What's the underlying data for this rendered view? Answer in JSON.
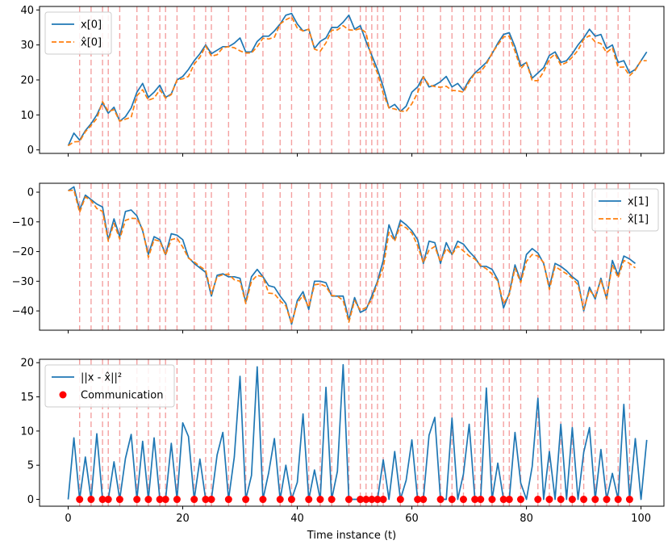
{
  "chart_data": [
    {
      "type": "line",
      "title": "",
      "xlabel": "",
      "ylabel": "",
      "xlim": [
        -5,
        104
      ],
      "ylim": [
        -1,
        41
      ],
      "yticks": [
        0,
        10,
        20,
        30,
        40
      ],
      "xticks": [
        0,
        20,
        40,
        60,
        80,
        100
      ],
      "show_xtick_labels": false,
      "legend_position": "upper-left",
      "series": [
        {
          "name": "x[0]",
          "color": "#1f77b4",
          "style": "solid",
          "values": [
            1.2,
            4.8,
            2.8,
            5.5,
            7.5,
            10,
            13.5,
            10.5,
            12.2,
            8.2,
            9.5,
            12,
            16.5,
            19,
            15,
            16.5,
            18.5,
            15,
            16,
            20,
            21,
            23,
            25.5,
            27.5,
            30,
            27.5,
            28.5,
            29.5,
            29.5,
            30.5,
            32,
            28,
            28,
            31,
            32.5,
            32.5,
            34,
            36,
            38.5,
            39,
            36,
            34,
            34.5,
            29,
            31,
            32,
            35,
            35,
            36.5,
            38.5,
            34.5,
            35.5,
            31,
            27,
            23,
            18,
            12,
            13,
            11,
            12.5,
            16.5,
            18,
            21,
            18,
            18.5,
            19.5,
            21,
            18,
            19,
            17,
            20,
            22,
            23.5,
            25,
            27.5,
            30.5,
            33,
            33.5,
            29.5,
            24,
            25,
            20.5,
            22,
            23.5,
            27,
            28,
            25,
            25.5,
            27.5,
            30,
            32,
            34.5,
            32.5,
            33,
            29,
            30,
            25,
            25.5,
            22,
            23,
            25.5,
            28
          ]
        },
        {
          "name": "x̂[0]",
          "color": "#ff7f0e",
          "style": "dashed",
          "values": [
            1.2,
            2.3,
            2.4,
            5.2,
            7.0,
            9.0,
            13.8,
            11.0,
            11.5,
            8.2,
            8.8,
            9.3,
            15.5,
            17.2,
            14.2,
            14.8,
            17.2,
            14.8,
            15.8,
            20.0,
            20.3,
            21.0,
            24.5,
            26.5,
            29.7,
            26.8,
            27.2,
            29.2,
            29.5,
            29.2,
            28.3,
            27.7,
            27.7,
            29.5,
            31.9,
            31.7,
            32.2,
            36.0,
            37.2,
            38.0,
            34.8,
            34.0,
            34.5,
            28.8,
            28.2,
            30.6,
            34.2,
            34.3,
            35.5,
            34.3,
            34.2,
            34.7,
            33.5,
            25.8,
            21.9,
            16.1,
            12.0,
            11.7,
            11.1,
            11.0,
            13.2,
            16.3,
            20.9,
            18.5,
            18.1,
            17.9,
            18.2,
            17.0,
            16.9,
            16.5,
            19.4,
            21.9,
            22.3,
            24.5,
            27.7,
            30.0,
            32.3,
            32.5,
            28.2,
            23.2,
            25.0,
            19.8,
            19.8,
            22.3,
            26.0,
            27.4,
            24.2,
            25.0,
            26.5,
            28.5,
            31.6,
            32.7,
            30.9,
            30.4,
            27.8,
            29.2,
            23.6,
            23.7,
            21.2,
            22.8,
            25.5,
            25.5
          ]
        }
      ]
    },
    {
      "type": "line",
      "title": "",
      "xlabel": "",
      "ylabel": "",
      "xlim": [
        -5,
        104
      ],
      "ylim": [
        -46.5,
        3
      ],
      "yticks": [
        0,
        -10,
        -20,
        -30,
        -40
      ],
      "xticks": [
        0,
        20,
        40,
        60,
        80,
        100
      ],
      "show_xtick_labels": false,
      "legend_position": "upper-right",
      "series": [
        {
          "name": "x[1]",
          "color": "#1f77b4",
          "style": "solid",
          "values": [
            0.5,
            1.8,
            -6,
            -1,
            -2.5,
            -4,
            -5,
            -16,
            -9,
            -15,
            -6.5,
            -6,
            -8,
            -13,
            -21,
            -15,
            -16,
            -21,
            -14,
            -14.5,
            -16,
            -22,
            -24,
            -25.5,
            -27,
            -35,
            -28,
            -27.5,
            -28.5,
            -28.5,
            -29,
            -37,
            -28.5,
            -26,
            -28.5,
            -31.5,
            -32,
            -35,
            -37.5,
            -44.5,
            -36.5,
            -33.5,
            -39.5,
            -30,
            -30,
            -30.5,
            -35,
            -35,
            -35,
            -43,
            -35.5,
            -40.5,
            -39.5,
            -35,
            -30,
            -23,
            -11,
            -16,
            -9.5,
            -11,
            -13,
            -16,
            -24,
            -16.5,
            -17,
            -24,
            -17,
            -21,
            -16.5,
            -17.5,
            -20,
            -22,
            -25,
            -25,
            -26,
            -29.5,
            -39,
            -34,
            -24.5,
            -30,
            -21,
            -19,
            -20.5,
            -24,
            -32,
            -24,
            -25,
            -26.5,
            -28.5,
            -30,
            -40,
            -32,
            -36,
            -29,
            -36,
            -23,
            -28,
            -21.5,
            -22.5,
            -24
          ]
        },
        {
          "name": "x̂[1]",
          "color": "#ff7f0e",
          "style": "dashed",
          "values": [
            0.5,
            0.7,
            -6.8,
            -1.6,
            -2.8,
            -5.5,
            -6.5,
            -16.5,
            -10.5,
            -15.8,
            -9.5,
            -8.8,
            -8.9,
            -12.5,
            -22.0,
            -16.0,
            -16.5,
            -21.2,
            -16.0,
            -15.5,
            -18.5,
            -22.2,
            -23.5,
            -25.0,
            -26.3,
            -34.3,
            -28.5,
            -27.8,
            -27.6,
            -29.5,
            -30.0,
            -37.5,
            -30.0,
            -28.0,
            -28.5,
            -34.0,
            -34.2,
            -36.6,
            -38.3,
            -44.3,
            -37.3,
            -34.8,
            -38.8,
            -31.2,
            -30.9,
            -31.8,
            -34.8,
            -35.0,
            -36.5,
            -43.8,
            -36.5,
            -39.8,
            -38.9,
            -36.3,
            -30.5,
            -25.5,
            -13.5,
            -16.5,
            -11.0,
            -12.0,
            -13.8,
            -18.0,
            -23.8,
            -19.5,
            -18.3,
            -23.5,
            -19.0,
            -21.0,
            -18.2,
            -19.8,
            -21.5,
            -22.5,
            -24.7,
            -25.8,
            -27.6,
            -29.9,
            -37.5,
            -34.6,
            -25.6,
            -30.5,
            -23.3,
            -21.0,
            -21.5,
            -23.7,
            -32.8,
            -25.0,
            -26.3,
            -27.5,
            -29.0,
            -31.2,
            -39.5,
            -33.0,
            -35.3,
            -29.6,
            -35.8,
            -24.5,
            -28.8,
            -23.0,
            -24.0,
            -25.5
          ]
        }
      ]
    },
    {
      "type": "line",
      "title": "",
      "xlabel": "Time instance (t)",
      "ylabel": "",
      "xlim": [
        -5,
        104
      ],
      "ylim": [
        -1,
        20.5
      ],
      "yticks": [
        0,
        5,
        10,
        15,
        20
      ],
      "xticks": [
        0,
        20,
        40,
        60,
        80,
        100
      ],
      "show_xtick_labels": true,
      "legend_position": "upper-left",
      "series": [
        {
          "name": "||x - x̂||²",
          "color": "#1f77b4",
          "style": "solid",
          "values": [
            0,
            9,
            0,
            6.2,
            0,
            9.6,
            0,
            0,
            5.5,
            0,
            6,
            9.5,
            0,
            8.5,
            0,
            9,
            0,
            0,
            8.2,
            0,
            11.2,
            9.2,
            0,
            5.9,
            0,
            0,
            6.5,
            9.8,
            0,
            6.2,
            18,
            0,
            3.5,
            19.4,
            0,
            3.9,
            8.9,
            0,
            5,
            0,
            2.5,
            12.5,
            0,
            4.3,
            0,
            16.4,
            0,
            4.1,
            19.7,
            0,
            0,
            0,
            0,
            0,
            0,
            5.8,
            0,
            7,
            0,
            2.8,
            8.7,
            0,
            0,
            9.4,
            12,
            0,
            0,
            11.9,
            0,
            3.7,
            11,
            0,
            0,
            16.3,
            0,
            5.3,
            0,
            0,
            9.8,
            2.4,
            0,
            4.8,
            14.8,
            0,
            7,
            0,
            11,
            0,
            10.5,
            0,
            6.9,
            10.5,
            0,
            7.3,
            0,
            3.8,
            0,
            13.9,
            0,
            8.9,
            0,
            8.7
          ]
        },
        {
          "name": "Communication",
          "color": "#ff0000",
          "style": "markers",
          "x": [
            2,
            4,
            6,
            7,
            9,
            12,
            14,
            16,
            17,
            19,
            22,
            24,
            25,
            28,
            31,
            34,
            37,
            39,
            42,
            44,
            46,
            49,
            51,
            52,
            53,
            54,
            55,
            58,
            61,
            62,
            65,
            67,
            69,
            71,
            72,
            74,
            76,
            77,
            79,
            82,
            84,
            86,
            88,
            90,
            92,
            94,
            96,
            98
          ],
          "y": [
            0,
            0,
            0,
            0,
            0,
            0,
            0,
            0,
            0,
            0,
            0,
            0,
            0,
            0,
            0,
            0,
            0,
            0,
            0,
            0,
            0,
            0,
            0,
            0,
            0,
            0,
            0,
            0,
            0,
            0,
            0,
            0,
            0,
            0,
            0,
            0,
            0,
            0,
            0,
            0,
            0,
            0,
            0,
            0,
            0,
            0,
            0,
            0
          ]
        }
      ]
    }
  ]
}
